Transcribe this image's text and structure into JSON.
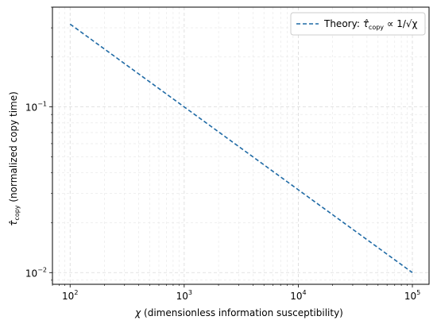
{
  "chart_data": {
    "type": "line",
    "title": "",
    "xlabel": "χ (dimensionless information susceptibility)",
    "ylabel": "τ̂copy (normalized copy time)",
    "xscale": "log",
    "yscale": "log",
    "xlim": [
      70,
      140000
    ],
    "ylim": [
      0.0085,
      0.4
    ],
    "grid": true,
    "legend_position": "top-right",
    "x_ticks": [
      {
        "value": 100,
        "base": "10",
        "exp": "2"
      },
      {
        "value": 1000,
        "base": "10",
        "exp": "3"
      },
      {
        "value": 10000,
        "base": "10",
        "exp": "4"
      },
      {
        "value": 100000,
        "base": "10",
        "exp": "5"
      }
    ],
    "y_ticks": [
      {
        "value": 0.01,
        "base": "10",
        "exp": "−2"
      },
      {
        "value": 0.1,
        "base": "10",
        "exp": "−1"
      }
    ],
    "series": [
      {
        "name": "Theory: τ̂copy ∝ 1/√χ",
        "style": "dashed",
        "color": "#1f6aa5",
        "x": [
          100,
          1000,
          10000,
          100000
        ],
        "y": [
          0.316,
          0.1,
          0.0316,
          0.01
        ]
      }
    ]
  },
  "legend": {
    "prefix": "Theory: ",
    "tau_char": "τ̂",
    "sub": "copy",
    "suffix": " ∝ 1/√χ"
  },
  "ylabel_parts": {
    "tau_char": "τ̂",
    "sub": "copy",
    "rest": " (normalized copy time)"
  },
  "xlabel_parts": {
    "chi_char": "χ",
    "rest": " (dimensionless information susceptibility)"
  }
}
